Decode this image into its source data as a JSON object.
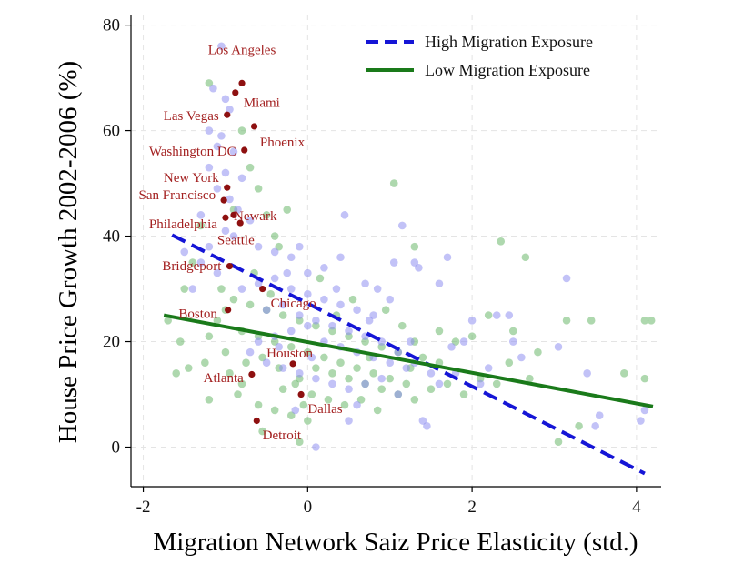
{
  "chart_data": {
    "type": "scatter",
    "title": "",
    "xlabel": "Migration Network Saiz Price Elasticity (std.)",
    "ylabel": "House Price Growth 2002-2006 (%)",
    "xlim": [
      -2.15,
      4.3
    ],
    "ylim": [
      -7.5,
      82
    ],
    "xticks": [
      -2,
      0,
      2,
      4
    ],
    "yticks": [
      0,
      20,
      40,
      60,
      80
    ],
    "grid": true,
    "legend_position": "top-right",
    "colors": {
      "high": "#1515d6",
      "low": "#1a7a1a",
      "high_points": "#8f8ff0",
      "low_points": "#6cb86c",
      "city": "#8e1010",
      "city_label": "#a32020"
    },
    "series": [
      {
        "name": "High Migration Exposure",
        "line": [
          [
            -1.65,
            40.2
          ],
          [
            4.1,
            -5.0
          ]
        ]
      },
      {
        "name": "Low Migration Exposure",
        "line": [
          [
            -1.75,
            25.0
          ],
          [
            4.2,
            7.7
          ]
        ]
      }
    ],
    "high_points": [
      [
        -1.05,
        76
      ],
      [
        -1.15,
        68
      ],
      [
        -1.0,
        66
      ],
      [
        -0.95,
        64
      ],
      [
        -1.2,
        60
      ],
      [
        -1.05,
        59
      ],
      [
        -1.1,
        57
      ],
      [
        -0.9,
        56
      ],
      [
        -1.2,
        53
      ],
      [
        -1.0,
        52
      ],
      [
        -0.8,
        51
      ],
      [
        -1.1,
        49
      ],
      [
        -0.95,
        47
      ],
      [
        -0.85,
        45
      ],
      [
        -1.3,
        44
      ],
      [
        -0.7,
        43
      ],
      [
        -1.0,
        41
      ],
      [
        -0.9,
        40
      ],
      [
        -1.2,
        38
      ],
      [
        -0.6,
        38
      ],
      [
        -0.4,
        37
      ],
      [
        -0.2,
        36
      ],
      [
        -0.1,
        38
      ],
      [
        0.0,
        33
      ],
      [
        0.2,
        34
      ],
      [
        0.4,
        36
      ],
      [
        0.45,
        44
      ],
      [
        0.7,
        31
      ],
      [
        0.85,
        30
      ],
      [
        1.0,
        28
      ],
      [
        1.05,
        35
      ],
      [
        1.15,
        42
      ],
      [
        1.3,
        35
      ],
      [
        1.35,
        34
      ],
      [
        1.6,
        31
      ],
      [
        1.7,
        36
      ],
      [
        1.75,
        19
      ],
      [
        1.9,
        20
      ],
      [
        2.0,
        24
      ],
      [
        2.3,
        25
      ],
      [
        2.45,
        25
      ],
      [
        2.5,
        20
      ],
      [
        3.15,
        32
      ],
      [
        3.05,
        19
      ],
      [
        3.4,
        14
      ],
      [
        3.55,
        6
      ],
      [
        3.5,
        4
      ],
      [
        4.1,
        7
      ],
      [
        4.05,
        5
      ],
      [
        -0.5,
        26
      ],
      [
        -0.3,
        27
      ],
      [
        -0.1,
        25
      ],
      [
        0.1,
        24
      ],
      [
        0.3,
        23
      ],
      [
        0.5,
        22
      ],
      [
        0.7,
        21
      ],
      [
        0.9,
        20
      ],
      [
        1.1,
        18
      ],
      [
        1.3,
        16
      ],
      [
        1.5,
        14
      ],
      [
        -0.6,
        20
      ],
      [
        -0.4,
        21
      ],
      [
        -0.2,
        22
      ],
      [
        0.0,
        23
      ],
      [
        0.2,
        20
      ],
      [
        0.4,
        19
      ],
      [
        0.6,
        18
      ],
      [
        0.8,
        17
      ],
      [
        1.0,
        16
      ],
      [
        1.2,
        15
      ],
      [
        -0.7,
        18
      ],
      [
        -0.5,
        16
      ],
      [
        -0.3,
        15
      ],
      [
        -0.1,
        14
      ],
      [
        0.1,
        13
      ],
      [
        0.3,
        12
      ],
      [
        0.5,
        11
      ],
      [
        0.7,
        12
      ],
      [
        0.9,
        13
      ],
      [
        1.1,
        10
      ],
      [
        1.4,
        5
      ],
      [
        1.45,
        4
      ],
      [
        1.6,
        12
      ],
      [
        1.8,
        14
      ],
      [
        2.1,
        12
      ],
      [
        2.2,
        15
      ],
      [
        2.6,
        17
      ],
      [
        -0.8,
        30
      ],
      [
        -0.6,
        31
      ],
      [
        -0.4,
        32
      ],
      [
        -0.2,
        30
      ],
      [
        0.0,
        29
      ],
      [
        0.2,
        28
      ],
      [
        0.4,
        27
      ],
      [
        0.6,
        26
      ],
      [
        0.8,
        25
      ],
      [
        -1.3,
        35
      ],
      [
        -1.5,
        37
      ],
      [
        -1.4,
        30
      ],
      [
        -1.1,
        33
      ],
      [
        0.1,
        0
      ],
      [
        -0.15,
        7
      ],
      [
        0.6,
        8
      ],
      [
        0.5,
        5
      ],
      [
        0.35,
        30
      ],
      [
        -0.25,
        33
      ],
      [
        0.75,
        24
      ],
      [
        1.25,
        20
      ],
      [
        0.05,
        17
      ],
      [
        -0.35,
        19
      ]
    ],
    "low_points": [
      [
        -1.2,
        69
      ],
      [
        -0.8,
        60
      ],
      [
        -0.7,
        53
      ],
      [
        -0.6,
        49
      ],
      [
        -0.9,
        45
      ],
      [
        -0.5,
        44
      ],
      [
        -0.4,
        40
      ],
      [
        -1.3,
        42
      ],
      [
        -1.4,
        35
      ],
      [
        -1.5,
        30
      ],
      [
        -1.7,
        24
      ],
      [
        -1.55,
        20
      ],
      [
        -1.45,
        15
      ],
      [
        -1.6,
        14
      ],
      [
        -1.25,
        16
      ],
      [
        -1.2,
        9
      ],
      [
        -1.0,
        18
      ],
      [
        -0.8,
        12
      ],
      [
        -0.6,
        8
      ],
      [
        -0.55,
        3
      ],
      [
        -0.4,
        7
      ],
      [
        -0.2,
        6
      ],
      [
        -0.1,
        1
      ],
      [
        0.0,
        5
      ],
      [
        -0.3,
        11
      ],
      [
        -0.1,
        13
      ],
      [
        0.1,
        15
      ],
      [
        0.3,
        14
      ],
      [
        0.5,
        13
      ],
      [
        0.7,
        12
      ],
      [
        0.9,
        11
      ],
      [
        1.1,
        10
      ],
      [
        1.3,
        9
      ],
      [
        1.5,
        11
      ],
      [
        1.7,
        12
      ],
      [
        1.9,
        10
      ],
      [
        2.1,
        13
      ],
      [
        2.3,
        12
      ],
      [
        1.05,
        50
      ],
      [
        1.3,
        38
      ],
      [
        2.35,
        39
      ],
      [
        2.65,
        36
      ],
      [
        2.0,
        21
      ],
      [
        2.2,
        25
      ],
      [
        2.5,
        22
      ],
      [
        2.8,
        18
      ],
      [
        3.15,
        24
      ],
      [
        3.45,
        24
      ],
      [
        3.3,
        4
      ],
      [
        3.05,
        1
      ],
      [
        3.85,
        14
      ],
      [
        4.1,
        24
      ],
      [
        4.18,
        24
      ],
      [
        4.1,
        13
      ],
      [
        -0.8,
        22
      ],
      [
        -0.6,
        21
      ],
      [
        -0.4,
        20
      ],
      [
        -0.2,
        19
      ],
      [
        0.0,
        18
      ],
      [
        0.2,
        17
      ],
      [
        0.4,
        16
      ],
      [
        0.6,
        15
      ],
      [
        0.8,
        14
      ],
      [
        1.0,
        13
      ],
      [
        1.2,
        12
      ],
      [
        1.4,
        17
      ],
      [
        1.6,
        16
      ],
      [
        -0.9,
        28
      ],
      [
        -0.7,
        27
      ],
      [
        -0.5,
        26
      ],
      [
        -0.3,
        25
      ],
      [
        -0.1,
        24
      ],
      [
        0.1,
        23
      ],
      [
        0.3,
        22
      ],
      [
        0.5,
        21
      ],
      [
        0.7,
        20
      ],
      [
        0.9,
        19
      ],
      [
        1.1,
        18
      ],
      [
        1.3,
        20
      ],
      [
        -1.0,
        26
      ],
      [
        -1.1,
        24
      ],
      [
        -1.2,
        21
      ],
      [
        -0.95,
        14
      ],
      [
        -0.75,
        16
      ],
      [
        -0.55,
        17
      ],
      [
        -0.35,
        15
      ],
      [
        -0.15,
        12
      ],
      [
        0.05,
        10
      ],
      [
        0.25,
        9
      ],
      [
        0.45,
        8
      ],
      [
        0.65,
        9
      ],
      [
        0.85,
        7
      ],
      [
        1.6,
        22
      ],
      [
        1.8,
        20
      ],
      [
        2.45,
        16
      ],
      [
        2.7,
        13
      ],
      [
        -0.25,
        45
      ],
      [
        -0.45,
        29
      ],
      [
        0.15,
        32
      ],
      [
        0.55,
        28
      ],
      [
        0.95,
        26
      ],
      [
        -0.65,
        33
      ],
      [
        -1.05,
        30
      ],
      [
        -0.35,
        38
      ],
      [
        0.35,
        25
      ],
      [
        1.15,
        23
      ],
      [
        -0.85,
        10
      ],
      [
        -0.05,
        8
      ],
      [
        0.75,
        17
      ],
      [
        1.25,
        15
      ]
    ],
    "cities": [
      {
        "label": "Los Angeles",
        "x": -0.8,
        "y": 69.0,
        "label_x": -0.8,
        "label_y": 74.5,
        "anchor": "middle"
      },
      {
        "label": "Miami",
        "x": -0.88,
        "y": 67.2,
        "label_x": -0.78,
        "label_y": 64.5,
        "anchor": "start"
      },
      {
        "label": "Las Vegas",
        "x": -0.98,
        "y": 63.0,
        "label_x": -1.08,
        "label_y": 62.0,
        "anchor": "end"
      },
      {
        "label": "Phoenix",
        "x": -0.65,
        "y": 60.8,
        "label_x": -0.58,
        "label_y": 57.0,
        "anchor": "start"
      },
      {
        "label": "Washington DC",
        "x": -0.77,
        "y": 56.3,
        "label_x": -0.87,
        "label_y": 55.3,
        "anchor": "end"
      },
      {
        "label": "New York",
        "x": -0.98,
        "y": 49.2,
        "label_x": -1.08,
        "label_y": 50.3,
        "anchor": "end"
      },
      {
        "label": "San Francisco",
        "x": -1.02,
        "y": 46.8,
        "label_x": -1.12,
        "label_y": 47.0,
        "anchor": "end"
      },
      {
        "label": "Newark",
        "x": -0.9,
        "y": 44.0,
        "label_x": -0.9,
        "label_y": 43.0,
        "anchor": "start"
      },
      {
        "label": "Philadelphia",
        "x": -1.0,
        "y": 43.5,
        "label_x": -1.1,
        "label_y": 41.5,
        "anchor": "end"
      },
      {
        "label": "Seattle",
        "x": -0.82,
        "y": 42.5,
        "label_x": -1.1,
        "label_y": 38.5,
        "anchor": "start"
      },
      {
        "label": "Bridgeport",
        "x": -0.95,
        "y": 34.3,
        "label_x": -1.05,
        "label_y": 33.5,
        "anchor": "end"
      },
      {
        "label": "Chicago",
        "x": -0.55,
        "y": 30.0,
        "label_x": -0.45,
        "label_y": 26.5,
        "anchor": "start"
      },
      {
        "label": "Boston",
        "x": -0.97,
        "y": 26.0,
        "label_x": -1.1,
        "label_y": 24.5,
        "anchor": "end"
      },
      {
        "label": "Houston",
        "x": -0.18,
        "y": 15.8,
        "label_x": -0.5,
        "label_y": 17.0,
        "anchor": "start"
      },
      {
        "label": "Atlanta",
        "x": -0.68,
        "y": 13.8,
        "label_x": -0.78,
        "label_y": 12.3,
        "anchor": "end"
      },
      {
        "label": "Dallas",
        "x": -0.08,
        "y": 10.0,
        "label_x": 0.0,
        "label_y": 6.5,
        "anchor": "start"
      },
      {
        "label": "Detroit",
        "x": -0.62,
        "y": 5.0,
        "label_x": -0.55,
        "label_y": 1.5,
        "anchor": "start"
      }
    ]
  }
}
